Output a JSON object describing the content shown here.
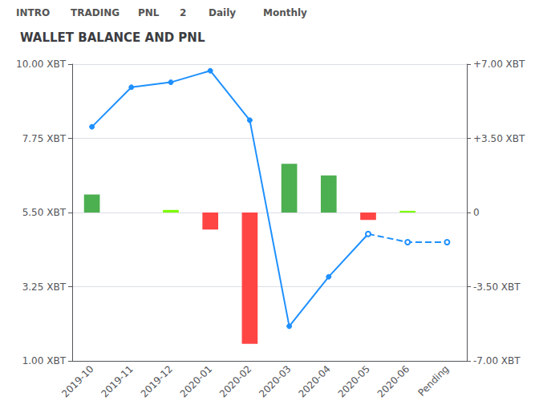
{
  "chart_data": {
    "type": "bar",
    "title": "WALLET BALANCE AND PNL",
    "annotations": [
      "INTRO",
      "TRADING",
      "PNL",
      "2",
      "Daily",
      "Monthly"
    ],
    "categories": [
      "2019-10",
      "2019-11",
      "2019-12",
      "2020-01",
      "2020-02",
      "2020-03",
      "2020-04",
      "2020-05",
      "2020-06",
      "Pending"
    ],
    "series": [
      {
        "type": "bar",
        "axis": "y2",
        "values": [
          0.85,
          0.0,
          0.12,
          -0.8,
          -6.2,
          2.3,
          1.75,
          -0.35,
          0.08,
          null
        ],
        "colors": [
          "#4CAF50",
          "#7CFC00",
          "#7CFC00",
          "#FF4444",
          "#FF4444",
          "#4CAF50",
          "#4CAF50",
          "#FF4444",
          "#7CFC00",
          null
        ]
      },
      {
        "type": "line",
        "color": "#1E90FF",
        "line_style": "solid",
        "marker": "circle",
        "values": [
          8.1,
          9.3,
          9.45,
          9.8,
          8.3,
          2.05,
          3.55,
          4.85,
          null,
          null
        ]
      },
      {
        "type": "line",
        "color": "#1E90FF",
        "line_style": "dashed",
        "marker": "emptyCircle",
        "values": [
          null,
          null,
          null,
          null,
          null,
          null,
          null,
          4.85,
          4.6,
          4.6
        ]
      }
    ],
    "ylim": [
      1.0,
      10.0
    ],
    "yticks": [
      {
        "value": 1.0,
        "label": "1.00 XBT"
      },
      {
        "value": 3.25,
        "label": "3.25 XBT"
      },
      {
        "value": 5.5,
        "label": "5.50 XBT"
      },
      {
        "value": 7.75,
        "label": "7.75 XBT"
      },
      {
        "value": 10.0,
        "label": "10.00 XBT"
      }
    ],
    "y2lim": [
      -7.0,
      7.0
    ],
    "y2ticks": [
      {
        "value": -7.0,
        "label": "-7.00 XBT"
      },
      {
        "value": -3.5,
        "label": "-3.50 XBT"
      },
      0,
      {
        "value": 3.5,
        "label": "+3.50 XBT"
      },
      {
        "value": 7.0,
        "label": "+7.00 XBT"
      }
    ],
    "grid": true
  }
}
